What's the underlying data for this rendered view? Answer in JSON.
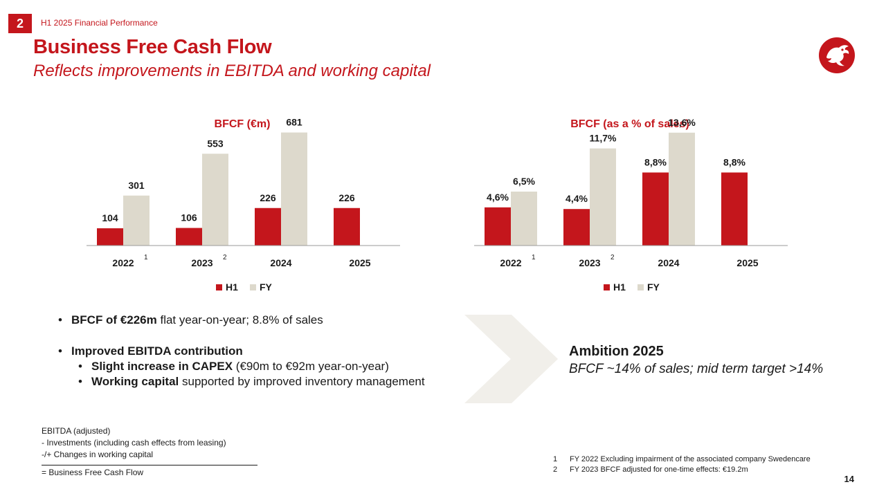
{
  "header": {
    "section_number": "2",
    "section_label": "H1 2025 Financial Performance",
    "title": "Business Free Cash Flow",
    "subtitle": "Reflects improvements in EBITDA and working capital"
  },
  "colors": {
    "accent": "#c4161c",
    "fy_bar": "#ddd9cc",
    "chevron": "#f1efea"
  },
  "chart_data": [
    {
      "type": "bar",
      "title": "BFCF (€m)",
      "categories": [
        "2022",
        "2023",
        "2024",
        "2025"
      ],
      "category_superscripts": [
        "1",
        "2",
        "",
        ""
      ],
      "series": [
        {
          "name": "H1",
          "values": [
            104,
            106,
            226,
            226
          ],
          "labels": [
            "104",
            "106",
            "226",
            "226"
          ]
        },
        {
          "name": "FY",
          "values": [
            301,
            553,
            681,
            null
          ],
          "labels": [
            "301",
            "553",
            "681",
            ""
          ]
        }
      ],
      "ylim": [
        0,
        700
      ],
      "legend_position": "bottom",
      "grid": false
    },
    {
      "type": "bar",
      "title": "BFCF (as a % of sales)",
      "categories": [
        "2022",
        "2023",
        "2024",
        "2025"
      ],
      "category_superscripts": [
        "1",
        "2",
        "",
        ""
      ],
      "series": [
        {
          "name": "H1",
          "values": [
            4.6,
            4.4,
            8.8,
            8.8
          ],
          "labels": [
            "4,6%",
            "4,4%",
            "8,8%",
            "8,8%"
          ]
        },
        {
          "name": "FY",
          "values": [
            6.5,
            11.7,
            13.6,
            null
          ],
          "labels": [
            "6,5%",
            "11,7%",
            "13,6%",
            ""
          ]
        }
      ],
      "ylim": [
        0,
        14
      ],
      "legend_position": "bottom",
      "grid": false
    }
  ],
  "bullets": {
    "b1_bold": "BFCF of €226m",
    "b1_rest": " flat year-on-year; 8.8% of sales",
    "b2_bold": "Improved EBITDA contribution",
    "s1_bold": "Slight increase in CAPEX",
    "s1_rest": " (€90m to €92m year-on-year)",
    "s2_bold": "Working capital",
    "s2_rest": " supported by improved inventory management"
  },
  "ambition": {
    "heading": "Ambition 2025",
    "text": "BFCF ~14% of sales; mid term target >14%"
  },
  "formula": {
    "line1": "EBITDA (adjusted)",
    "line2": "- Investments (including cash effects from leasing)",
    "line3": "-/+ Changes in working capital",
    "result": "= Business Free Cash Flow"
  },
  "footnotes": [
    {
      "num": "1",
      "text": "FY 2022 Excluding impairment of the associated company Swedencare"
    },
    {
      "num": "2",
      "text": "FY 2023 BFCF adjusted for one-time effects: €19.2m"
    }
  ],
  "page_number": "14",
  "icons": {
    "logo": "dragon-logo-icon",
    "arrow": "chevron-right-icon"
  }
}
